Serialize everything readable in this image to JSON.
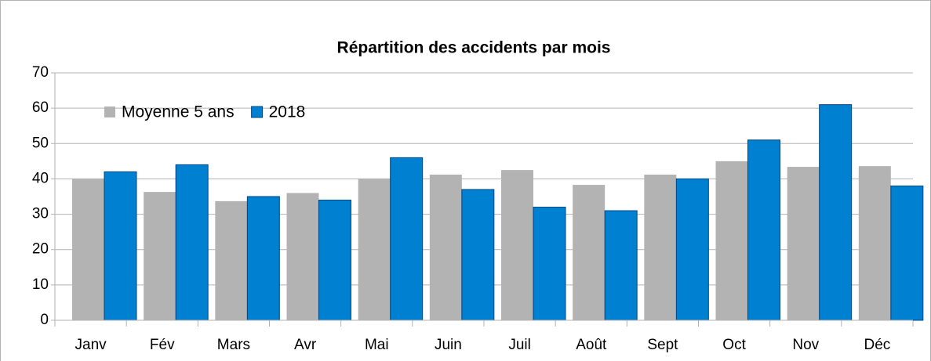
{
  "chart_data": {
    "type": "bar",
    "title": "Répartition des accidents par mois",
    "categories": [
      "Janv",
      "Fév",
      "Mars",
      "Avr",
      "Mai",
      "Juin",
      "Juil",
      "Août",
      "Sept",
      "Oct",
      "Nov",
      "Déc"
    ],
    "series": [
      {
        "name": "Moyenne 5 ans",
        "color": "#b3b3b3",
        "values": [
          40,
          36.3,
          33.7,
          36,
          40,
          41.2,
          42.5,
          38.3,
          41.2,
          45,
          43.4,
          43.6
        ]
      },
      {
        "name": "2018",
        "color": "#0080d0",
        "values": [
          42,
          44,
          35,
          34,
          46,
          37,
          32,
          31,
          40,
          51,
          61,
          38
        ]
      }
    ],
    "ylim": [
      0,
      70
    ],
    "yticks": [
      0,
      10,
      20,
      30,
      40,
      50,
      60,
      70
    ],
    "grid": true,
    "legend": "top-left"
  }
}
